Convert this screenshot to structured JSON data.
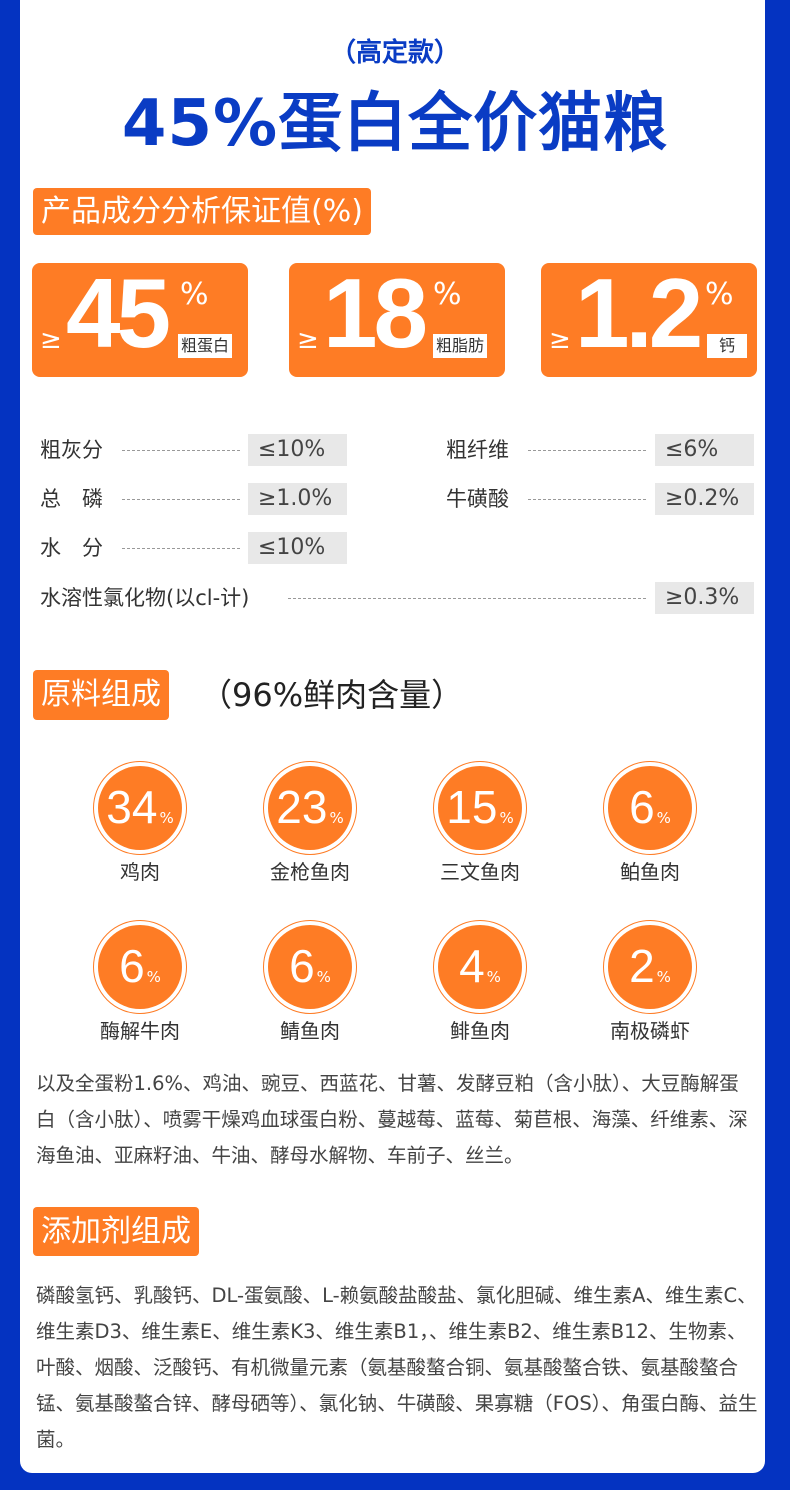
{
  "header": {
    "subtitle": "（高定款）",
    "title": "45%蛋白全价猫粮"
  },
  "analysis": {
    "heading": "产品成分分析保证值(%)",
    "highlights": [
      {
        "prefix": "≥",
        "value": "45",
        "unit": "%",
        "label": "粗蛋白"
      },
      {
        "prefix": "≥",
        "value": "18",
        "unit": "%",
        "label": "粗脂肪"
      },
      {
        "prefix": "≥",
        "value": "1.2",
        "unit": "%",
        "label": "钙"
      }
    ],
    "rows": [
      {
        "label": "粗灰分",
        "value": "≤10%"
      },
      {
        "label": "粗纤维",
        "value": "≤6%"
      },
      {
        "label": "总　磷",
        "value": "≥1.0%"
      },
      {
        "label": "牛磺酸",
        "value": "≥0.2%"
      },
      {
        "label": "水　分",
        "value": "≤10%"
      },
      {
        "label": "水溶性氯化物(以cl-计)",
        "value": "≥0.3%"
      }
    ]
  },
  "ingredients": {
    "heading": "原料组成",
    "subheading": "（96%鲜肉含量）",
    "items": [
      {
        "value": "34",
        "unit": "%",
        "label": "鸡肉"
      },
      {
        "value": "23",
        "unit": "%",
        "label": "金枪鱼肉"
      },
      {
        "value": "15",
        "unit": "%",
        "label": "三文鱼肉"
      },
      {
        "value": "6",
        "unit": "%",
        "label": "鲌鱼肉"
      },
      {
        "value": "6",
        "unit": "%",
        "label": "酶解牛肉"
      },
      {
        "value": "6",
        "unit": "%",
        "label": "鲭鱼肉"
      },
      {
        "value": "4",
        "unit": "%",
        "label": "鲱鱼肉"
      },
      {
        "value": "2",
        "unit": "%",
        "label": "南极磷虾"
      }
    ],
    "extra": "以及全蛋粉1.6%、鸡油、豌豆、西蓝花、甘薯、发酵豆粕（含小肽）、大豆酶解蛋白（含小肽）、喷雾干燥鸡血球蛋白粉、蔓越莓、蓝莓、菊苣根、海藻、纤维素、深海鱼油、亚麻籽油、牛油、酵母水解物、车前子、丝兰。"
  },
  "additives": {
    "heading": "添加剂组成",
    "text": "磷酸氢钙、乳酸钙、DL-蛋氨酸、L-赖氨酸盐酸盐、氯化胆碱、维生素A、维生素C、维生素D3、维生素E、维生素K3、维生素B1，、维生素B2、维生素B12、生物素、叶酸、烟酸、泛酸钙、有机微量元素（氨基酸螯合铜、氨基酸螯合铁、氨基酸螯合锰、氨基酸螯合锌、酵母硒等）、氯化钠、牛磺酸、果寡糖（FOS）、角蛋白酶、益生菌。"
  },
  "colors": {
    "frame": "#0433c1",
    "title": "#0a3cc4",
    "accent": "#fe7c25"
  }
}
